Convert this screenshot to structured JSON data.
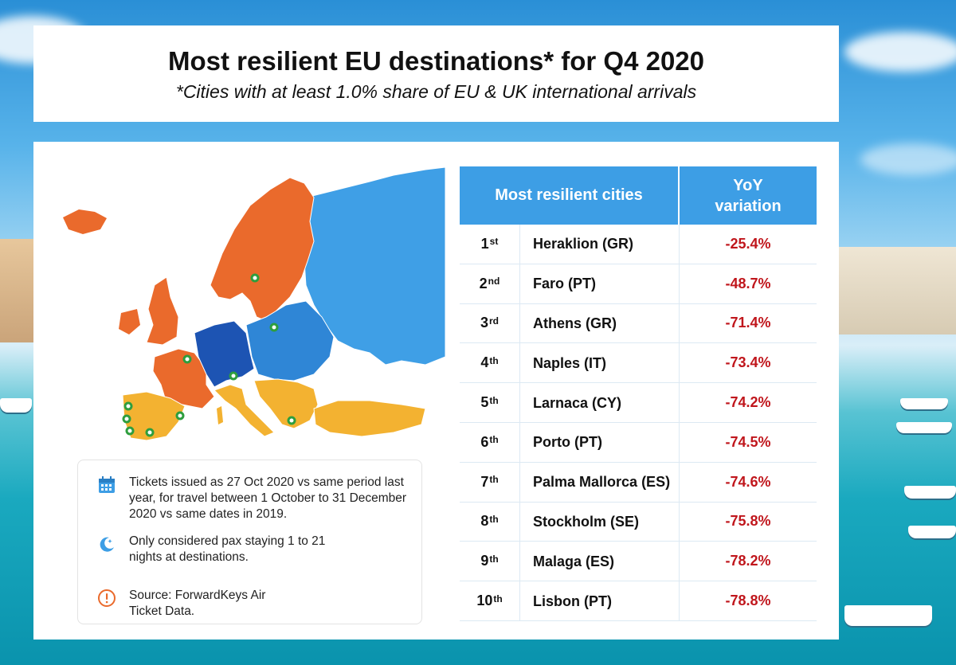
{
  "header": {
    "title": "Most resilient EU destinations* for Q4 2020",
    "subtitle": "*Cities with at least 1.0% share of EU & UK international arrivals"
  },
  "colors": {
    "header_blue": "#3d9ee5",
    "negative_red": "#c0161c",
    "map_orange": "#ea6a2c",
    "map_dark_blue": "#1d54b3",
    "map_mid_blue": "#2f86d6",
    "map_light_blue": "#3f9fe6",
    "map_yellow": "#f3b231",
    "marker_green": "#2e9e3e"
  },
  "table": {
    "col_cities": "Most resilient cities",
    "col_yoy": "YoY variation",
    "rows": [
      {
        "rank": "1",
        "suffix": "st",
        "city": "Heraklion (GR)",
        "yoy": "-25.4%"
      },
      {
        "rank": "2",
        "suffix": "nd",
        "city": "Faro (PT)",
        "yoy": "-48.7%"
      },
      {
        "rank": "3",
        "suffix": "rd",
        "city": "Athens (GR)",
        "yoy": "-71.4%"
      },
      {
        "rank": "4",
        "suffix": "th",
        "city": "Naples (IT)",
        "yoy": "-73.4%"
      },
      {
        "rank": "5",
        "suffix": "th",
        "city": "Larnaca (CY)",
        "yoy": "-74.2%"
      },
      {
        "rank": "6",
        "suffix": "th",
        "city": "Porto (PT)",
        "yoy": "-74.5%"
      },
      {
        "rank": "7",
        "suffix": "th",
        "city": "Palma Mallorca (ES)",
        "yoy": "-74.6%"
      },
      {
        "rank": "8",
        "suffix": "th",
        "city": "Stockholm (SE)",
        "yoy": "-75.8%"
      },
      {
        "rank": "9",
        "suffix": "th",
        "city": "Malaga (ES)",
        "yoy": "-78.2%"
      },
      {
        "rank": "10",
        "suffix": "th",
        "city": "Lisbon (PT)",
        "yoy": "-78.8%"
      }
    ]
  },
  "notes": [
    {
      "icon": "calendar-icon",
      "text": "Tickets issued as 27 Oct 2020 vs same period last year, for travel between 1 October to 31 December 2020 vs same dates in 2019."
    },
    {
      "icon": "moon-stars-icon",
      "text": "Only considered pax staying 1 to 21 nights at destinations."
    },
    {
      "icon": "exclamation-icon",
      "text": "Source: ForwardKeys Air Ticket Data."
    }
  ]
}
